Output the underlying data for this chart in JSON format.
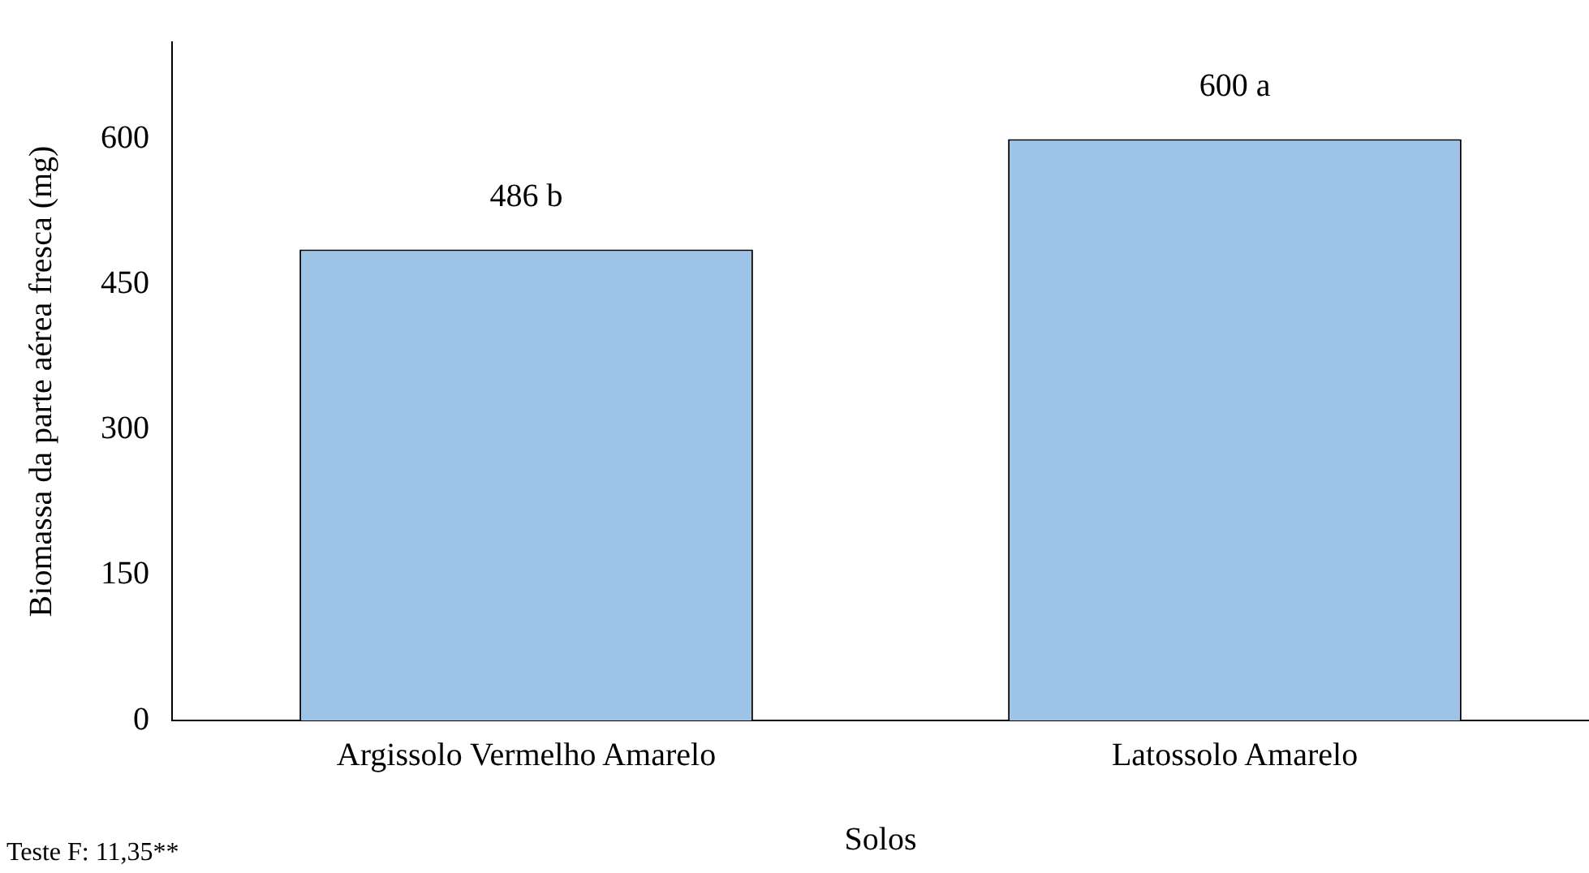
{
  "chart_data": {
    "type": "bar",
    "categories": [
      "Argissolo Vermelho Amarelo",
      "Latossolo Amarelo"
    ],
    "values": [
      486,
      600
    ],
    "value_labels": [
      "486 b",
      "600 a"
    ],
    "color": "#9dc3e6",
    "xlabel": "Solos",
    "ylabel": "Biomassa da parte aérea fresca (mg)",
    "ylim": [
      0,
      700
    ],
    "yticks": [
      0,
      150,
      300,
      450,
      600
    ],
    "grid": false,
    "legend": false,
    "annotations": [
      "Teste F: 11,35**"
    ]
  }
}
